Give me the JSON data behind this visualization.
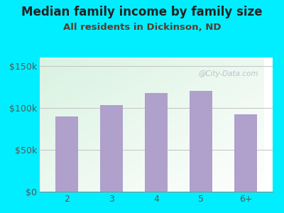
{
  "title": "Median family income by family size",
  "subtitle": "All residents in Dickinson, ND",
  "categories": [
    "2",
    "3",
    "4",
    "5",
    "6+"
  ],
  "values": [
    90000,
    103000,
    118000,
    120000,
    92000
  ],
  "bar_color": "#b0a0cc",
  "background_outer": "#00eeff",
  "title_color": "#222222",
  "subtitle_color": "#5a3a2a",
  "axis_label_color": "#555555",
  "ytick_color": "#555555",
  "xtick_color": "#555555",
  "ylim": [
    0,
    160000
  ],
  "yticks": [
    0,
    50000,
    100000,
    150000
  ],
  "ytick_labels": [
    "$0",
    "$50k",
    "$100k",
    "$150k"
  ],
  "watermark": "@City-Data.com",
  "title_fontsize": 12,
  "subtitle_fontsize": 9.5,
  "bar_width": 0.5
}
